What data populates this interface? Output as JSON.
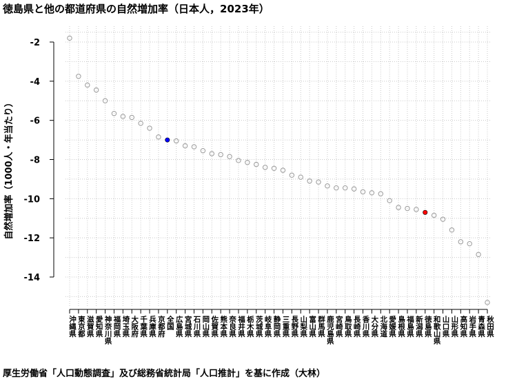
{
  "title": "徳島県と他の都道府県の自然増加率（日本人，2023年）",
  "source_note": "厚生労働省「人口動態調査」及び総務省統計局「人口推計」を基に作成（大林）",
  "chart_data": {
    "type": "scatter",
    "title": "徳島県と他の都道府県の自然増加率（日本人，2023年）",
    "xlabel": "",
    "ylabel": "自然増加率（1000人・年当たり）",
    "ylim": [
      -15.5,
      -1.5
    ],
    "yticks": [
      -14,
      -12,
      -10,
      -8,
      -6,
      -4,
      -2
    ],
    "grid": true,
    "colors": {
      "default": "#9a9a9a",
      "highlight_national": "#0000ff",
      "highlight_tokushima": "#ff0000",
      "grid": "#c8c8c8"
    },
    "categories": [
      "沖縄県",
      "東京都",
      "滋賀県",
      "愛知県",
      "神奈川県",
      "福岡県",
      "埼玉県",
      "大阪府",
      "千葉県",
      "兵庫県",
      "京都府",
      "全国",
      "広島県",
      "宮城県",
      "石川県",
      "岡山県",
      "佐賀県",
      "熊本県",
      "奈良県",
      "福井県",
      "栃木県",
      "茨城県",
      "岐阜県",
      "静岡県",
      "三重県",
      "長野県",
      "山梨県",
      "富山県",
      "群馬県",
      "鹿児島県",
      "宮崎県",
      "鳥取県",
      "長崎県",
      "香川県",
      "大分県",
      "北海道",
      "愛媛県",
      "島根県",
      "福島県",
      "新潟県",
      "徳島県",
      "和歌山県",
      "山口県",
      "山形県",
      "高知県",
      "岩手県",
      "青森県",
      "秋田県"
    ],
    "values": [
      -1.8,
      -3.75,
      -4.2,
      -4.45,
      -5.0,
      -5.65,
      -5.8,
      -5.85,
      -6.15,
      -6.4,
      -6.85,
      -7.0,
      -7.05,
      -7.3,
      -7.35,
      -7.55,
      -7.7,
      -7.75,
      -7.85,
      -8.05,
      -8.15,
      -8.25,
      -8.4,
      -8.45,
      -8.55,
      -8.8,
      -8.9,
      -9.1,
      -9.15,
      -9.35,
      -9.45,
      -9.45,
      -9.5,
      -9.65,
      -9.7,
      -9.75,
      -10.1,
      -10.45,
      -10.5,
      -10.55,
      -10.7,
      -10.85,
      -11.05,
      -11.6,
      -12.2,
      -12.3,
      -12.85,
      -15.3
    ],
    "highlights": {
      "全国": "highlight_national",
      "徳島県": "highlight_tokushima"
    }
  }
}
